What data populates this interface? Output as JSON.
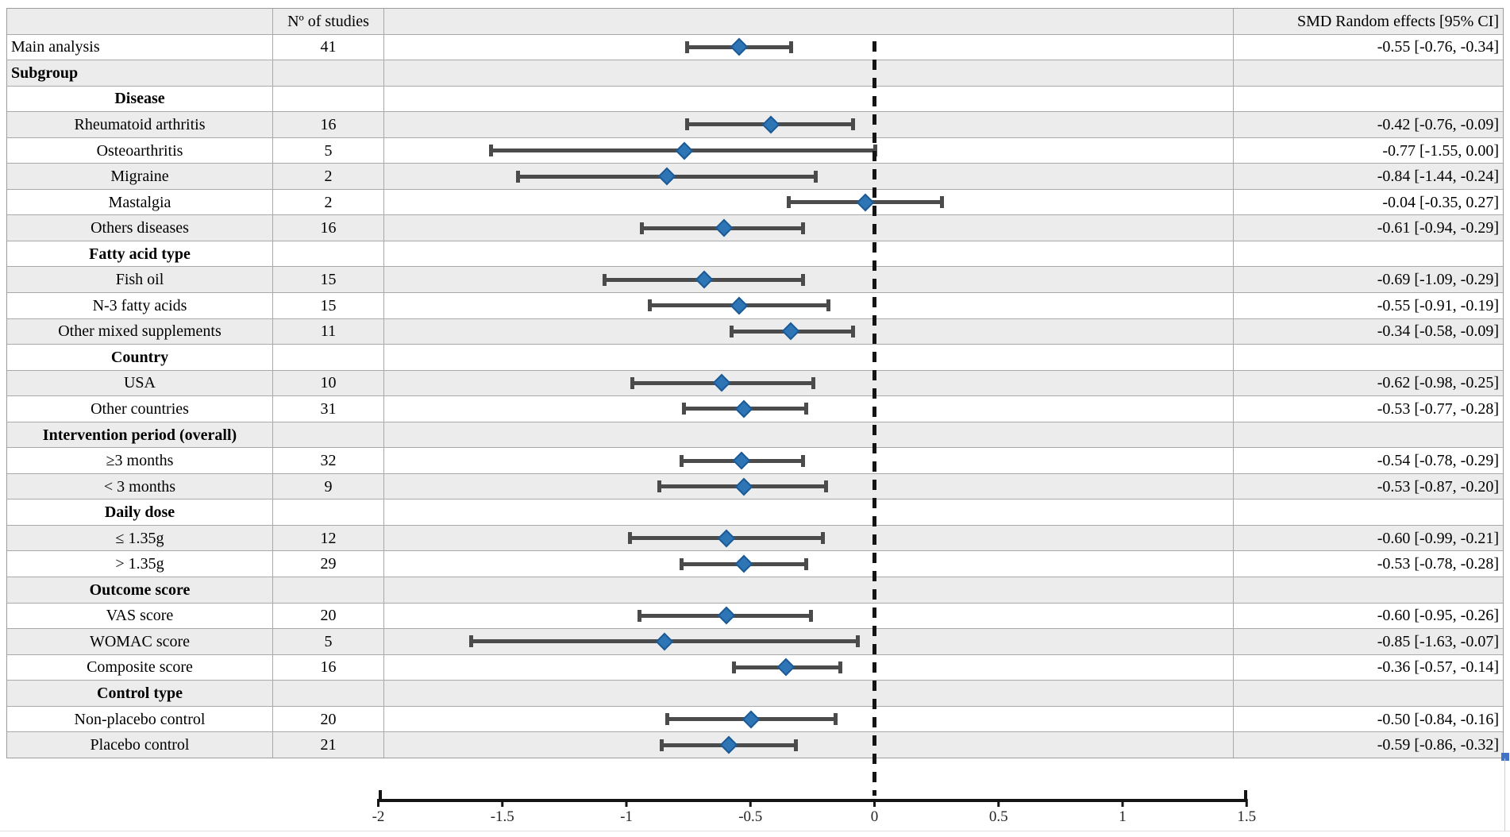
{
  "table": {
    "header": {
      "label_col": "",
      "studies_col": "Nº of studies",
      "plot_col": "",
      "smd_col": "SMD Random effects [95% CI]"
    },
    "rows": [
      {
        "label": "Main analysis",
        "style": "left",
        "n": "41",
        "smd": "-0.55 [-0.76, -0.34]",
        "est": -0.55,
        "lo": -0.76,
        "hi": -0.34
      },
      {
        "label": "Subgroup",
        "style": "group-left",
        "n": "",
        "smd": "",
        "est": null,
        "lo": null,
        "hi": null
      },
      {
        "label": "Disease",
        "style": "group",
        "n": "",
        "smd": "",
        "est": null,
        "lo": null,
        "hi": null
      },
      {
        "label": "Rheumatoid arthritis",
        "style": "item",
        "n": "16",
        "smd": "-0.42 [-0.76, -0.09]",
        "est": -0.42,
        "lo": -0.76,
        "hi": -0.09
      },
      {
        "label": "Osteoarthritis",
        "style": "item",
        "n": "5",
        "smd": "-0.77 [-1.55, 0.00]",
        "est": -0.77,
        "lo": -1.55,
        "hi": 0.0
      },
      {
        "label": "Migraine",
        "style": "item",
        "n": "2",
        "smd": "-0.84 [-1.44, -0.24]",
        "est": -0.84,
        "lo": -1.44,
        "hi": -0.24
      },
      {
        "label": "Mastalgia",
        "style": "item",
        "n": "2",
        "smd": "-0.04 [-0.35, 0.27]",
        "est": -0.04,
        "lo": -0.35,
        "hi": 0.27
      },
      {
        "label": "Others diseases",
        "style": "item",
        "n": "16",
        "smd": "-0.61 [-0.94, -0.29]",
        "est": -0.61,
        "lo": -0.94,
        "hi": -0.29
      },
      {
        "label": "Fatty acid type",
        "style": "group",
        "n": "",
        "smd": "",
        "est": null,
        "lo": null,
        "hi": null
      },
      {
        "label": "Fish oil",
        "style": "item",
        "n": "15",
        "smd": "-0.69 [-1.09, -0.29]",
        "est": -0.69,
        "lo": -1.09,
        "hi": -0.29
      },
      {
        "label": "N-3 fatty acids",
        "style": "item",
        "n": "15",
        "smd": "-0.55 [-0.91, -0.19]",
        "est": -0.55,
        "lo": -0.91,
        "hi": -0.19
      },
      {
        "label": "Other mixed supplements",
        "style": "item",
        "n": "11",
        "smd": "-0.34 [-0.58, -0.09]",
        "est": -0.34,
        "lo": -0.58,
        "hi": -0.09
      },
      {
        "label": "Country",
        "style": "group",
        "n": "",
        "smd": "",
        "est": null,
        "lo": null,
        "hi": null
      },
      {
        "label": "USA",
        "style": "item",
        "n": "10",
        "smd": "-0.62 [-0.98, -0.25]",
        "est": -0.62,
        "lo": -0.98,
        "hi": -0.25
      },
      {
        "label": "Other countries",
        "style": "item",
        "n": "31",
        "smd": "-0.53 [-0.77, -0.28]",
        "est": -0.53,
        "lo": -0.77,
        "hi": -0.28
      },
      {
        "label": "Intervention period (overall)",
        "style": "group",
        "n": "",
        "smd": "",
        "est": null,
        "lo": null,
        "hi": null
      },
      {
        "label": "≥3 months",
        "style": "item",
        "n": "32",
        "smd": "-0.54 [-0.78, -0.29]",
        "est": -0.54,
        "lo": -0.78,
        "hi": -0.29
      },
      {
        "label": "< 3 months",
        "style": "item",
        "n": "9",
        "smd": "-0.53 [-0.87, -0.20]",
        "est": -0.53,
        "lo": -0.87,
        "hi": -0.2
      },
      {
        "label": "Daily dose",
        "style": "group",
        "n": "",
        "smd": "",
        "est": null,
        "lo": null,
        "hi": null
      },
      {
        "label": "≤ 1.35g",
        "style": "item",
        "n": "12",
        "smd": "-0.60 [-0.99, -0.21]",
        "est": -0.6,
        "lo": -0.99,
        "hi": -0.21
      },
      {
        "label": "> 1.35g",
        "style": "item",
        "n": "29",
        "smd": "-0.53 [-0.78, -0.28]",
        "est": -0.53,
        "lo": -0.78,
        "hi": -0.28
      },
      {
        "label": "Outcome score",
        "style": "group",
        "n": "",
        "smd": "",
        "est": null,
        "lo": null,
        "hi": null
      },
      {
        "label": "VAS score",
        "style": "item",
        "n": "20",
        "smd": "-0.60 [-0.95, -0.26]",
        "est": -0.6,
        "lo": -0.95,
        "hi": -0.26
      },
      {
        "label": "WOMAC score",
        "style": "item",
        "n": "5",
        "smd": "-0.85 [-1.63, -0.07]",
        "est": -0.85,
        "lo": -1.63,
        "hi": -0.07
      },
      {
        "label": "Composite score",
        "style": "item",
        "n": "16",
        "smd": "-0.36 [-0.57, -0.14]",
        "est": -0.36,
        "lo": -0.57,
        "hi": -0.14
      },
      {
        "label": "Control type",
        "style": "group",
        "n": "",
        "smd": "",
        "est": null,
        "lo": null,
        "hi": null
      },
      {
        "label": "Non-placebo control",
        "style": "item",
        "n": "20",
        "smd": "-0.50 [-0.84, -0.16]",
        "est": -0.5,
        "lo": -0.84,
        "hi": -0.16
      },
      {
        "label": "Placebo control",
        "style": "item",
        "n": "21",
        "smd": "-0.59 [-0.86, -0.32]",
        "est": -0.59,
        "lo": -0.86,
        "hi": -0.32
      }
    ]
  },
  "chart_data": {
    "type": "scatter",
    "subtype": "forest-plot",
    "xlabel": "",
    "ylabel": "",
    "value_column_header": "SMD Random effects [95% CI]",
    "n_column_header": "Nº of studies",
    "axis": {
      "min": -2,
      "max": 1.5,
      "ticks": [
        -2,
        -1.5,
        -1,
        -0.5,
        0,
        0.5,
        1,
        1.5
      ],
      "tick_labels": [
        "-2",
        "-1.5",
        "-1",
        "-0.5",
        "0",
        "0.5",
        "1",
        "1.5"
      ],
      "zero_reference_line": 0,
      "grid": false
    },
    "series": [
      {
        "label": "Main analysis",
        "n": 41,
        "est": -0.55,
        "ci": [
          -0.76,
          -0.34
        ]
      },
      {
        "label": "Rheumatoid arthritis",
        "n": 16,
        "est": -0.42,
        "ci": [
          -0.76,
          -0.09
        ]
      },
      {
        "label": "Osteoarthritis",
        "n": 5,
        "est": -0.77,
        "ci": [
          -1.55,
          0.0
        ]
      },
      {
        "label": "Migraine",
        "n": 2,
        "est": -0.84,
        "ci": [
          -1.44,
          -0.24
        ]
      },
      {
        "label": "Mastalgia",
        "n": 2,
        "est": -0.04,
        "ci": [
          -0.35,
          0.27
        ]
      },
      {
        "label": "Others diseases",
        "n": 16,
        "est": -0.61,
        "ci": [
          -0.94,
          -0.29
        ]
      },
      {
        "label": "Fish oil",
        "n": 15,
        "est": -0.69,
        "ci": [
          -1.09,
          -0.29
        ]
      },
      {
        "label": "N-3 fatty acids",
        "n": 15,
        "est": -0.55,
        "ci": [
          -0.91,
          -0.19
        ]
      },
      {
        "label": "Other mixed supplements",
        "n": 11,
        "est": -0.34,
        "ci": [
          -0.58,
          -0.09
        ]
      },
      {
        "label": "USA",
        "n": 10,
        "est": -0.62,
        "ci": [
          -0.98,
          -0.25
        ]
      },
      {
        "label": "Other countries",
        "n": 31,
        "est": -0.53,
        "ci": [
          -0.77,
          -0.28
        ]
      },
      {
        "label": "≥3 months",
        "n": 32,
        "est": -0.54,
        "ci": [
          -0.78,
          -0.29
        ]
      },
      {
        "label": "< 3 months",
        "n": 9,
        "est": -0.53,
        "ci": [
          -0.87,
          -0.2
        ]
      },
      {
        "label": "≤ 1.35g",
        "n": 12,
        "est": -0.6,
        "ci": [
          -0.99,
          -0.21
        ]
      },
      {
        "label": "> 1.35g",
        "n": 29,
        "est": -0.53,
        "ci": [
          -0.78,
          -0.28
        ]
      },
      {
        "label": "VAS score",
        "n": 20,
        "est": -0.6,
        "ci": [
          -0.95,
          -0.26
        ]
      },
      {
        "label": "WOMAC score",
        "n": 5,
        "est": -0.85,
        "ci": [
          -1.63,
          -0.07
        ]
      },
      {
        "label": "Composite score",
        "n": 16,
        "est": -0.36,
        "ci": [
          -0.57,
          -0.14
        ]
      },
      {
        "label": "Non-placebo control",
        "n": 20,
        "est": -0.5,
        "ci": [
          -0.84,
          -0.16
        ]
      },
      {
        "label": "Placebo control",
        "n": 21,
        "est": -0.59,
        "ci": [
          -0.86,
          -0.32
        ]
      }
    ]
  },
  "colors": {
    "diamond_fill": "#2e75b6",
    "diamond_border": "#1c5a96",
    "whisker": "#4b4b4b",
    "row_shade": "#ececec",
    "table_border": "#a9a9a9",
    "axis": "#141414",
    "selection_handle": "#4472c4"
  }
}
